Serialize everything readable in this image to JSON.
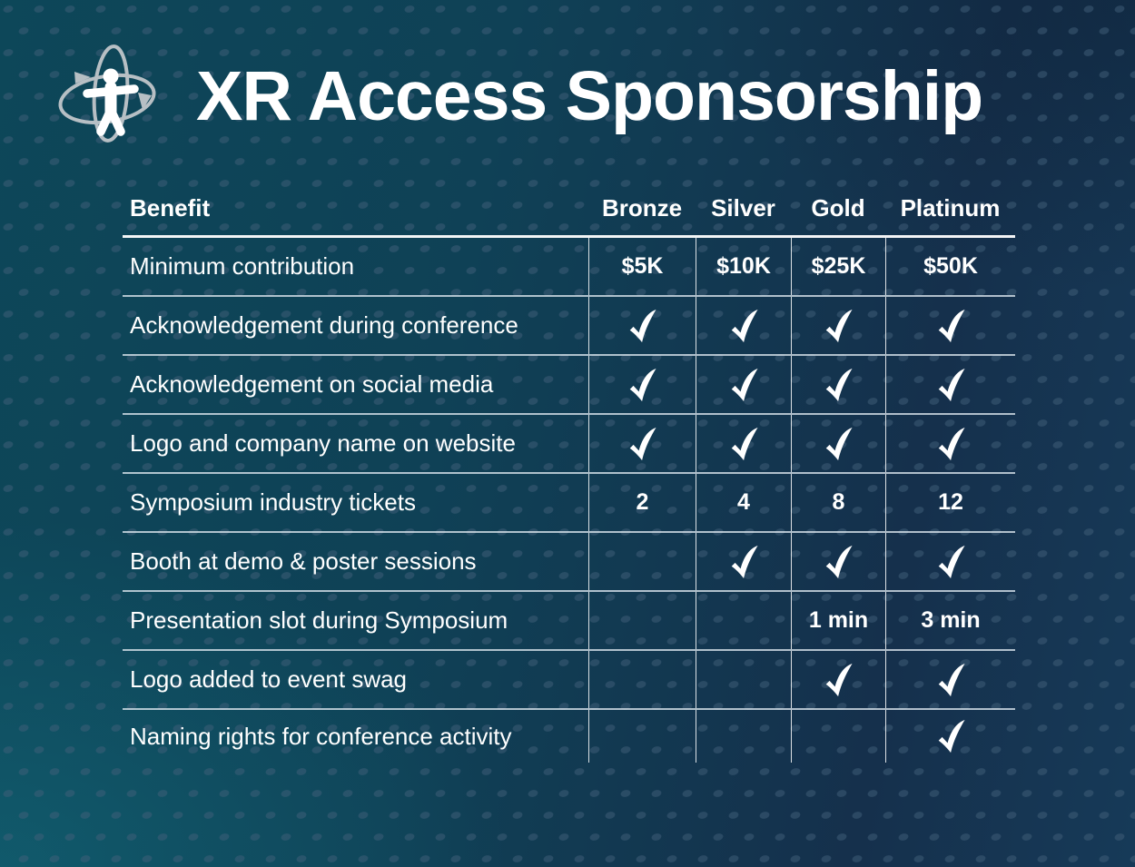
{
  "title": "XR Access Sponsorship",
  "logo": {
    "label": "XR Access logo"
  },
  "table": {
    "headers": [
      "Benefit",
      "Bronze",
      "Silver",
      "Gold",
      "Platinum"
    ],
    "rows": [
      {
        "benefit": "Minimum contribution",
        "cells": [
          "$5K",
          "$10K",
          "$25K",
          "$50K"
        ]
      },
      {
        "benefit": "Acknowledgement during conference",
        "cells": [
          "✔",
          "✔",
          "✔",
          "✔"
        ]
      },
      {
        "benefit": "Acknowledgement on social media",
        "cells": [
          "✔",
          "✔",
          "✔",
          "✔"
        ]
      },
      {
        "benefit": "Logo and company name on website",
        "cells": [
          "✔",
          "✔",
          "✔",
          "✔"
        ]
      },
      {
        "benefit": "Symposium industry tickets",
        "cells": [
          "2",
          "4",
          "8",
          "12"
        ]
      },
      {
        "benefit": "Booth at demo & poster sessions",
        "cells": [
          "",
          "✔",
          "✔",
          "✔"
        ]
      },
      {
        "benefit": "Presentation slot during Symposium",
        "cells": [
          "",
          "",
          "1 min",
          "3 min"
        ]
      },
      {
        "benefit": "Logo added to event swag",
        "cells": [
          "",
          "",
          "✔",
          "✔"
        ]
      },
      {
        "benefit": "Naming rights for conference activity",
        "cells": [
          "",
          "",
          "",
          "✔"
        ]
      }
    ]
  },
  "colors": {
    "background_teal": "#0d4759",
    "background_navy": "#163a58",
    "dot": "#41607a",
    "ring_gray": "#b7bfc4",
    "text": "#ffffff"
  }
}
